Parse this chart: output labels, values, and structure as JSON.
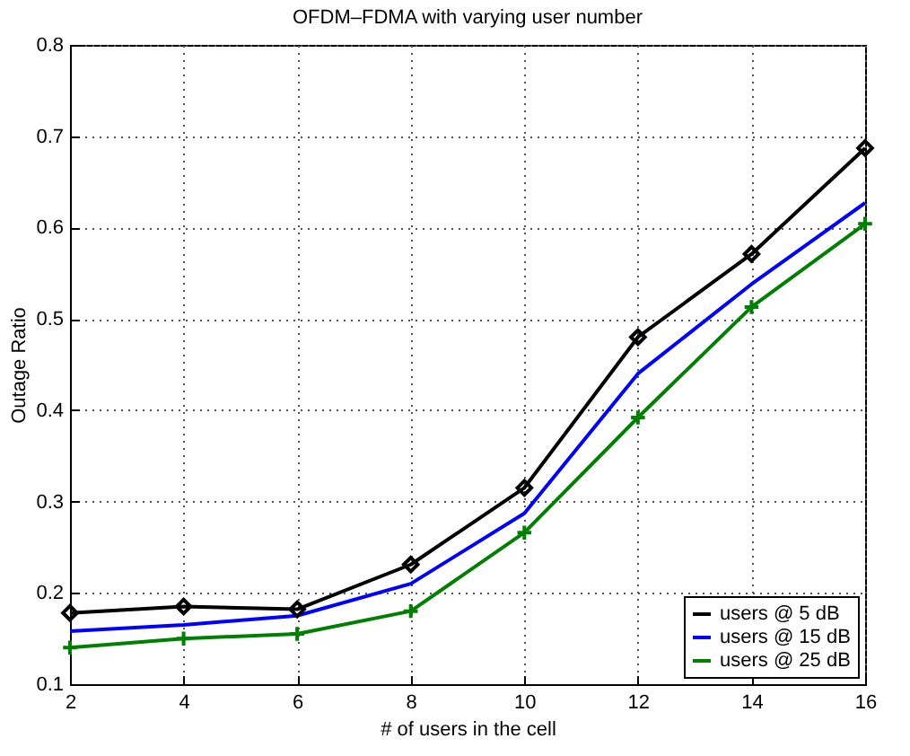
{
  "chart_data": {
    "type": "line",
    "title": "OFDM–FDMA with varying user number",
    "xlabel": "# of users in the cell",
    "ylabel": "Outage Ratio",
    "x": [
      2,
      4,
      6,
      8,
      10,
      12,
      14,
      16
    ],
    "series": [
      {
        "name": "users @ 5 dB",
        "color": "#000000",
        "marker": "diamond",
        "values": [
          0.178,
          0.185,
          0.182,
          0.231,
          0.315,
          0.48,
          0.571,
          0.687
        ]
      },
      {
        "name": "users @ 15 dB",
        "color": "#0000ff",
        "marker": "none",
        "values": [
          0.158,
          0.165,
          0.175,
          0.21,
          0.287,
          0.44,
          0.538,
          0.627
        ]
      },
      {
        "name": "users @ 25 dB",
        "color": "#008000",
        "marker": "cross",
        "values": [
          0.14,
          0.15,
          0.155,
          0.18,
          0.266,
          0.392,
          0.513,
          0.604
        ]
      }
    ],
    "xlim": [
      2,
      16
    ],
    "xticks": [
      2,
      4,
      6,
      8,
      10,
      12,
      14,
      16
    ],
    "ylim": [
      0.1,
      0.8
    ],
    "yticks": [
      0.1,
      0.2,
      0.3,
      0.4,
      0.5,
      0.6,
      0.7,
      0.8
    ],
    "grid": true,
    "legend": "bottom right",
    "line_style": "solid"
  }
}
